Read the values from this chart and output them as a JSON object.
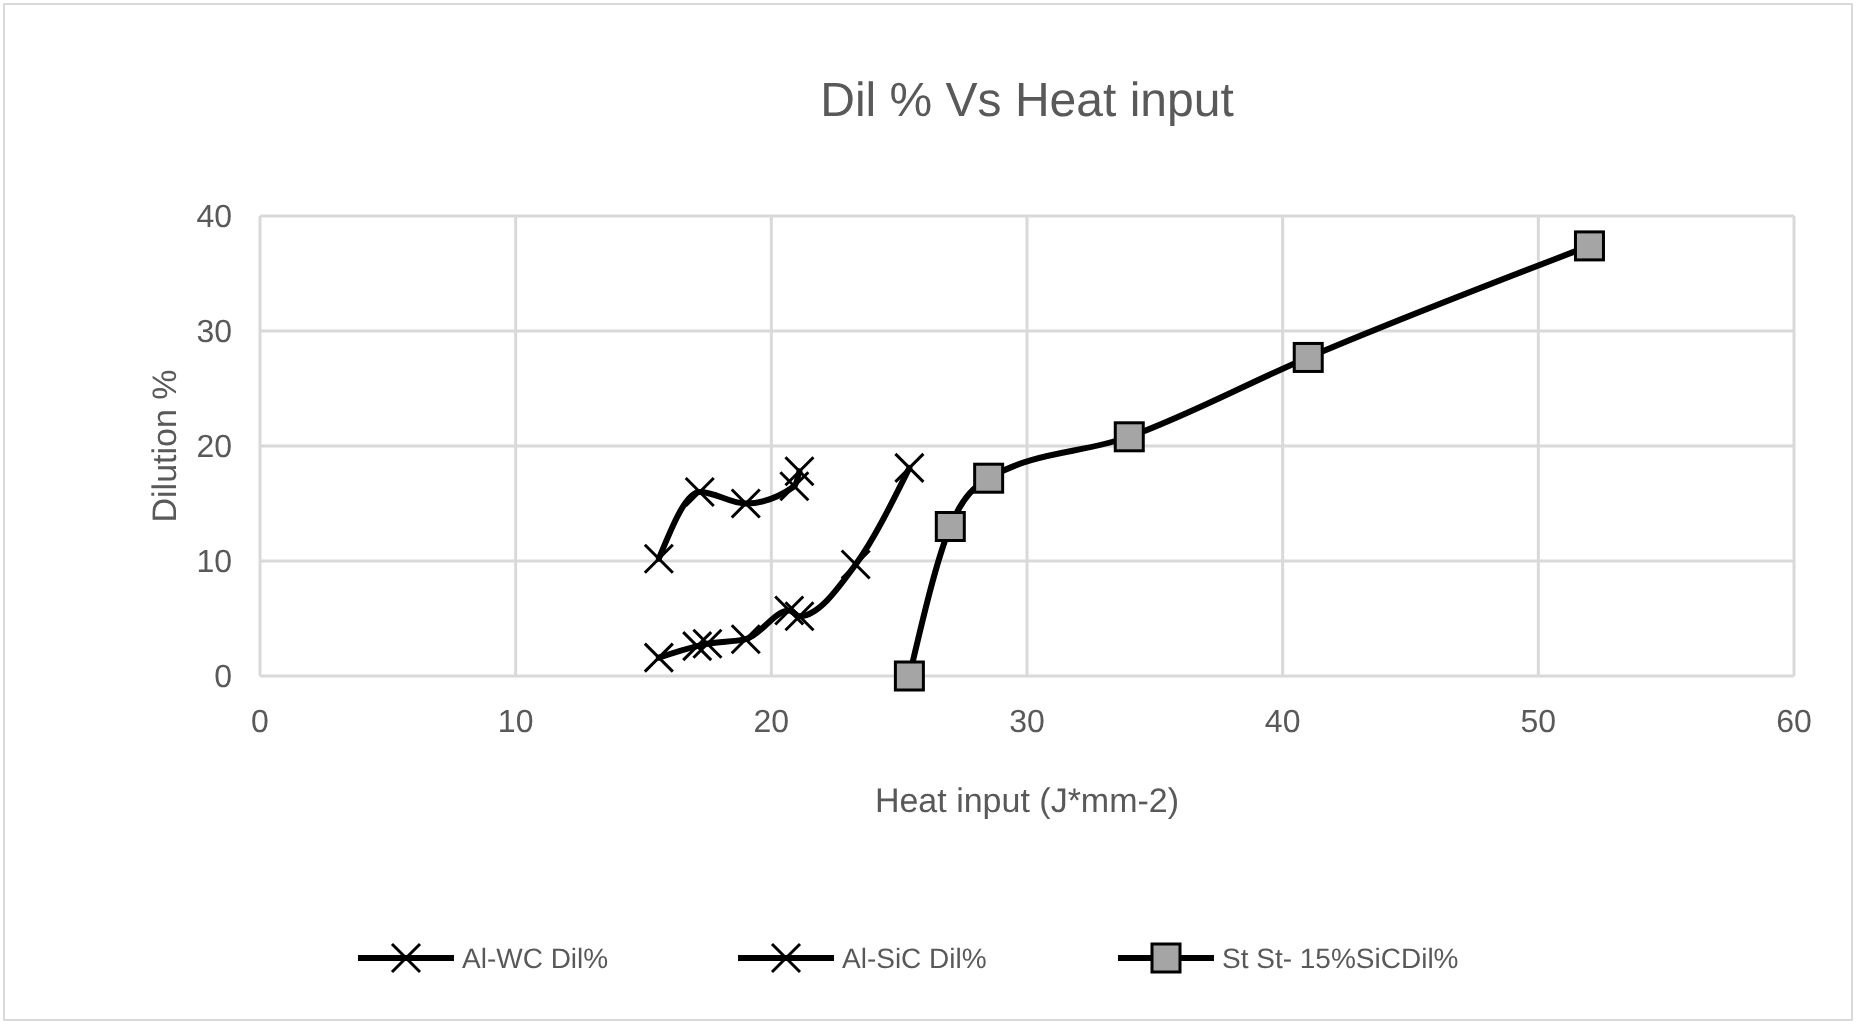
{
  "chart_data": {
    "type": "line",
    "title": "Dil % Vs Heat input",
    "xlabel": "Heat input (J*mm-2)",
    "ylabel": "Dilution %",
    "xlim": [
      0,
      60
    ],
    "xticks": [
      0,
      10,
      20,
      30,
      40,
      50,
      60
    ],
    "ylim": [
      0,
      40
    ],
    "yticks": [
      0,
      10,
      20,
      30,
      40
    ],
    "grid": true,
    "legend": "bottom",
    "line_style": "solid",
    "series": [
      {
        "name": "Al-WC Dil%",
        "color": "#000000",
        "marker": "cross",
        "x": [
          15.6,
          17.1,
          17.5,
          19.0,
          20.7,
          21.1,
          23.3,
          25.4
        ],
        "values": [
          1.6,
          2.6,
          2.8,
          3.2,
          5.7,
          5.2,
          9.7,
          18.1
        ]
      },
      {
        "name": "Al-SiC Dil%",
        "color": "#000000",
        "marker": "cross",
        "x": [
          15.6,
          17.2,
          19.0,
          20.9,
          21.1
        ],
        "values": [
          10.2,
          16.0,
          15.0,
          16.5,
          17.8
        ]
      },
      {
        "name": "St St- 15%SiCDil%",
        "color": "#000000",
        "marker": "square",
        "x": [
          25.4,
          27.0,
          28.5,
          34.0,
          41.0,
          52.0
        ],
        "values": [
          0,
          13.0,
          17.2,
          20.8,
          27.7,
          37.4
        ]
      }
    ]
  }
}
